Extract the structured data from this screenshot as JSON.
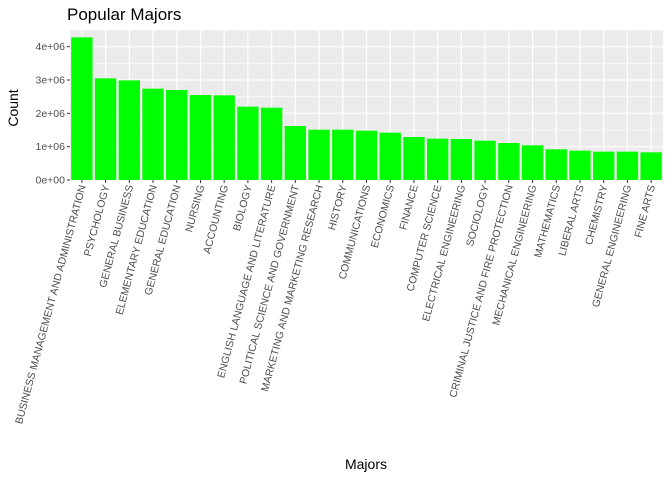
{
  "chart_data": {
    "type": "bar",
    "title": "Popular Majors",
    "xlabel": "Majors",
    "ylabel": "Count",
    "categories": [
      "BUSINESS MANAGEMENT AND ADMINISTRATION",
      "PSYCHOLOGY",
      "GENERAL BUSINESS",
      "ELEMENTARY EDUCATION",
      "GENERAL EDUCATION",
      "NURSING",
      "ACCOUNTING",
      "BIOLOGY",
      "ENGLISH LANGUAGE AND LITERATURE",
      "POLITICAL SCIENCE AND GOVERNMENT",
      "MARKETING AND MARKETING RESEARCH",
      "HISTORY",
      "COMMUNICATIONS",
      "ECONOMICS",
      "FINANCE",
      "COMPUTER SCIENCE",
      "ELECTRICAL ENGINEERING",
      "SOCIOLOGY",
      "CRIMINAL JUSTICE AND FIRE PROTECTION",
      "MECHANICAL ENGINEERING",
      "MATHEMATICS",
      "LIBERAL ARTS",
      "CHEMISTRY",
      "GENERAL ENGINEERING",
      "FINE ARTS"
    ],
    "values": [
      4280000,
      3050000,
      2990000,
      2740000,
      2700000,
      2550000,
      2540000,
      2200000,
      2170000,
      1620000,
      1510000,
      1510000,
      1480000,
      1420000,
      1290000,
      1240000,
      1230000,
      1180000,
      1110000,
      1040000,
      920000,
      880000,
      850000,
      850000,
      830000
    ],
    "yticks": [
      0,
      1000000,
      2000000,
      3000000,
      4000000
    ],
    "ytick_labels": [
      "0e+00",
      "1e+06",
      "2e+06",
      "3e+06",
      "4e+06"
    ],
    "ylim": [
      0,
      4500000
    ],
    "bar_color": "#00ff00",
    "panel_bg": "#ebebeb",
    "grid_color": "#ffffff",
    "grid": true,
    "legend": "none"
  }
}
